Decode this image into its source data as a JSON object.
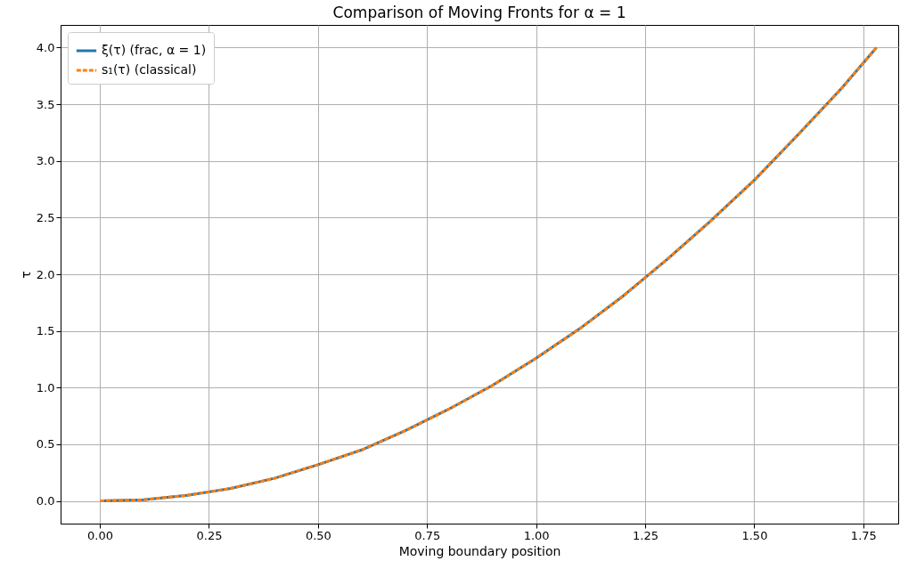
{
  "chart_data": {
    "type": "line",
    "title": "Comparison of Moving Fronts for α = 1",
    "xlabel": "Moving boundary position",
    "ylabel": "τ",
    "xlim": [
      -0.09,
      1.83
    ],
    "xticks": [
      {
        "value": 0,
        "label": "0.00"
      },
      0.25,
      {
        "value": 0.5,
        "label": "0.50"
      },
      0.75,
      {
        "value": 1,
        "label": "1.00"
      },
      1.25,
      {
        "value": 1.5,
        "label": "1.50"
      },
      1.75
    ],
    "ylim": [
      -0.2,
      4.2
    ],
    "yticks": [
      {
        "value": 0,
        "label": "0.0"
      },
      0.5,
      {
        "value": 1,
        "label": "1.0"
      },
      1.5,
      {
        "value": 2,
        "label": "2.0"
      },
      2.5,
      {
        "value": 3,
        "label": "3.0"
      },
      3.5,
      {
        "value": 4,
        "label": "4.0"
      }
    ],
    "x": [
      0,
      0.1,
      0.2,
      0.3,
      0.4,
      0.5,
      0.6,
      0.7,
      0.8,
      0.9,
      1.0,
      1.1,
      1.2,
      1.3,
      1.4,
      1.5,
      1.6,
      1.7,
      1.78
    ],
    "series": [
      {
        "name": "ξ(τ) (frac, α = 1)",
        "color": "#1f77b4",
        "line_style": "solid",
        "values": [
          0,
          0.01,
          0.05,
          0.11,
          0.2,
          0.32,
          0.45,
          0.62,
          0.81,
          1.02,
          1.26,
          1.52,
          1.81,
          2.13,
          2.47,
          2.83,
          3.23,
          3.64,
          4.0
        ]
      },
      {
        "name": "s₁(τ) (classical)",
        "color": "#ff7f0e",
        "line_style": "dashed",
        "values": [
          0,
          0.01,
          0.05,
          0.11,
          0.2,
          0.32,
          0.45,
          0.62,
          0.81,
          1.02,
          1.26,
          1.52,
          1.81,
          2.13,
          2.47,
          2.83,
          3.23,
          3.64,
          4.0
        ]
      }
    ],
    "grid": true,
    "legend": "top left"
  }
}
